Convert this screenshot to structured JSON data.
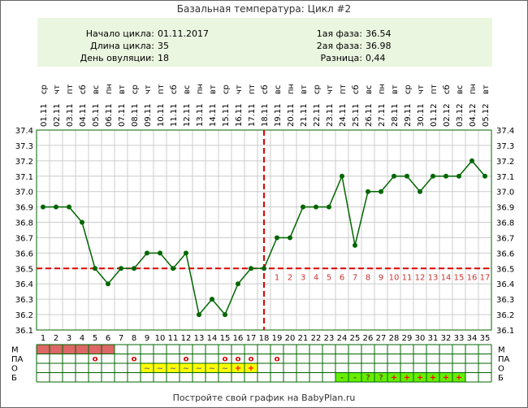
{
  "title": "Базальная температура: Цикл #2",
  "info": {
    "left": [
      {
        "label": "Начало цикла:",
        "value": "01.11.2017"
      },
      {
        "label": "Длина цикла:",
        "value": "35"
      },
      {
        "label": "День овуляции:",
        "value": "18"
      }
    ],
    "right": [
      {
        "label": "1ая фаза:",
        "value": "36.54"
      },
      {
        "label": "2ая фаза:",
        "value": "36.98"
      },
      {
        "label": "Разница:",
        "value": "0,44"
      }
    ]
  },
  "footer": "Постройте свой график на BabyPlan.ru",
  "row_labels": [
    "М",
    "ПА",
    "О",
    "Б"
  ],
  "colors": {
    "border": "#006600",
    "grid": "#cccccc",
    "line": "#006600",
    "marker": "#006600",
    "coverline": "#dd0000",
    "phase_numbers": "#cc3333",
    "panel_bg": "#ebf6e0",
    "menses": "#dd6666",
    "mucus_yellow": "#ffff00",
    "test_green": "#66ee00",
    "plus_red": "#ff0000",
    "circle_red": "#dd0000"
  },
  "chart_data": {
    "type": "line",
    "title": "Базальная температура: Цикл #2",
    "x": [
      1,
      2,
      3,
      4,
      5,
      6,
      7,
      8,
      9,
      10,
      11,
      12,
      13,
      14,
      15,
      16,
      17,
      18,
      19,
      20,
      21,
      22,
      23,
      24,
      25,
      26,
      27,
      28,
      29,
      30,
      31,
      32,
      33,
      34,
      35
    ],
    "dates": [
      "01.11",
      "02.11",
      "03.11",
      "04.11",
      "05.11",
      "06.11",
      "07.11",
      "08.11",
      "09.11",
      "10.11",
      "11.11",
      "12.11",
      "13.11",
      "14.11",
      "15.11",
      "16.11",
      "17.11",
      "18.11",
      "19.11",
      "20.11",
      "21.11",
      "22.11",
      "23.11",
      "24.11",
      "25.11",
      "26.11",
      "27.11",
      "28.11",
      "29.11",
      "30.11",
      "01.12",
      "02.12",
      "03.12",
      "04.12",
      "05.12"
    ],
    "weekdays": [
      "ср",
      "чт",
      "пт",
      "сб",
      "вс",
      "пн",
      "вт",
      "ср",
      "чт",
      "пт",
      "сб",
      "вс",
      "пн",
      "вт",
      "ср",
      "чт",
      "пт",
      "сб",
      "вс",
      "пн",
      "вт",
      "ср",
      "чт",
      "пт",
      "сб",
      "вс",
      "пн",
      "вт",
      "ср",
      "чт",
      "пт",
      "сб",
      "вс",
      "пн",
      "вт"
    ],
    "values": [
      36.9,
      36.9,
      36.9,
      36.8,
      36.5,
      36.4,
      36.5,
      36.5,
      36.6,
      36.6,
      36.5,
      36.6,
      36.2,
      36.3,
      36.2,
      36.4,
      36.5,
      36.5,
      36.7,
      36.7,
      36.9,
      36.9,
      36.9,
      37.1,
      36.65,
      37.0,
      37.0,
      37.1,
      37.1,
      37.0,
      37.1,
      37.1,
      37.1,
      37.2,
      37.1
    ],
    "ylim": [
      36.1,
      37.4
    ],
    "yticks": [
      "36.1",
      "36.2",
      "36.3",
      "36.4",
      "36.5",
      "36.6",
      "36.7",
      "36.8",
      "36.9",
      "37.0",
      "37.1",
      "37.2",
      "37.3",
      "37.4"
    ],
    "coverline": 36.5,
    "ovulation_day": 18,
    "phase2_days": [
      "1",
      "2",
      "3",
      "4",
      "5",
      "6",
      "7",
      "8",
      "9",
      "10",
      "11",
      "12",
      "13",
      "14",
      "15",
      "16",
      "17"
    ],
    "grid": true,
    "rows": {
      "menses": [
        1,
        2,
        3,
        4,
        5,
        6
      ],
      "pa": {
        "5": "о",
        "8": "о",
        "12": "о",
        "15": "о",
        "16": "о",
        "17": "о",
        "19": "о"
      },
      "mucus": {
        "9": "~",
        "10": "~",
        "11": "~",
        "12": "~",
        "13": "~",
        "14": "~",
        "15": "~",
        "16": "+",
        "17": "+"
      },
      "tests": {
        "24": "-",
        "25": "-",
        "26": "?",
        "27": "?",
        "28": "+",
        "29": "+",
        "30": "+",
        "31": "+",
        "32": "+",
        "33": "+"
      }
    }
  }
}
